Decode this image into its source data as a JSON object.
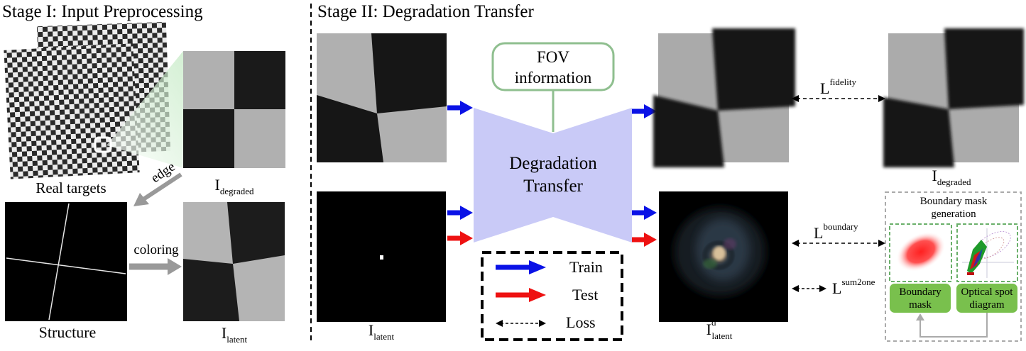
{
  "stage1": {
    "title": "Stage I: Input Preprocessing",
    "real_targets": "Real targets",
    "structure": "Structure",
    "edge": "edge",
    "coloring": "coloring",
    "i_degraded": {
      "base": "I",
      "sub": "degraded"
    },
    "i_latent": {
      "base": "I",
      "sub": "latent"
    }
  },
  "stage2": {
    "title": "Stage II: Degradation Transfer",
    "fov_line1": "FOV",
    "fov_line2": "information",
    "degradation_line1": "Degradation",
    "degradation_line2": "Transfer",
    "i_latent": {
      "base": "I",
      "sub": "latent"
    },
    "i_d_latent": {
      "base": "I",
      "sup": "d",
      "sub": "latent"
    },
    "i_degraded": {
      "base": "I",
      "sub": "degraded"
    },
    "legend": {
      "train": "Train",
      "test": "Test",
      "loss": "Loss"
    },
    "losses": {
      "fidelity": {
        "base": "L",
        "sup": "fidelity"
      },
      "boundary": {
        "base": "L",
        "sup": "boundary"
      },
      "sum2one": {
        "base": "L",
        "sup": "sum2one"
      }
    },
    "mask_panel": {
      "title_line1": "Boundary mask",
      "title_line2": "generation",
      "boundary_mask_line1": "Boundary",
      "boundary_mask_line2": "mask",
      "spot_line1": "Optical spot",
      "spot_line2": "diagram"
    }
  },
  "colors": {
    "train": "#0a12e6",
    "test": "#ee1111",
    "fov_border": "#8fbf8f",
    "transfer_fill": "#c9caf7",
    "green_box": "#79c04d",
    "light_gray_square": "#b3b3b3",
    "dark_square": "#161616"
  }
}
